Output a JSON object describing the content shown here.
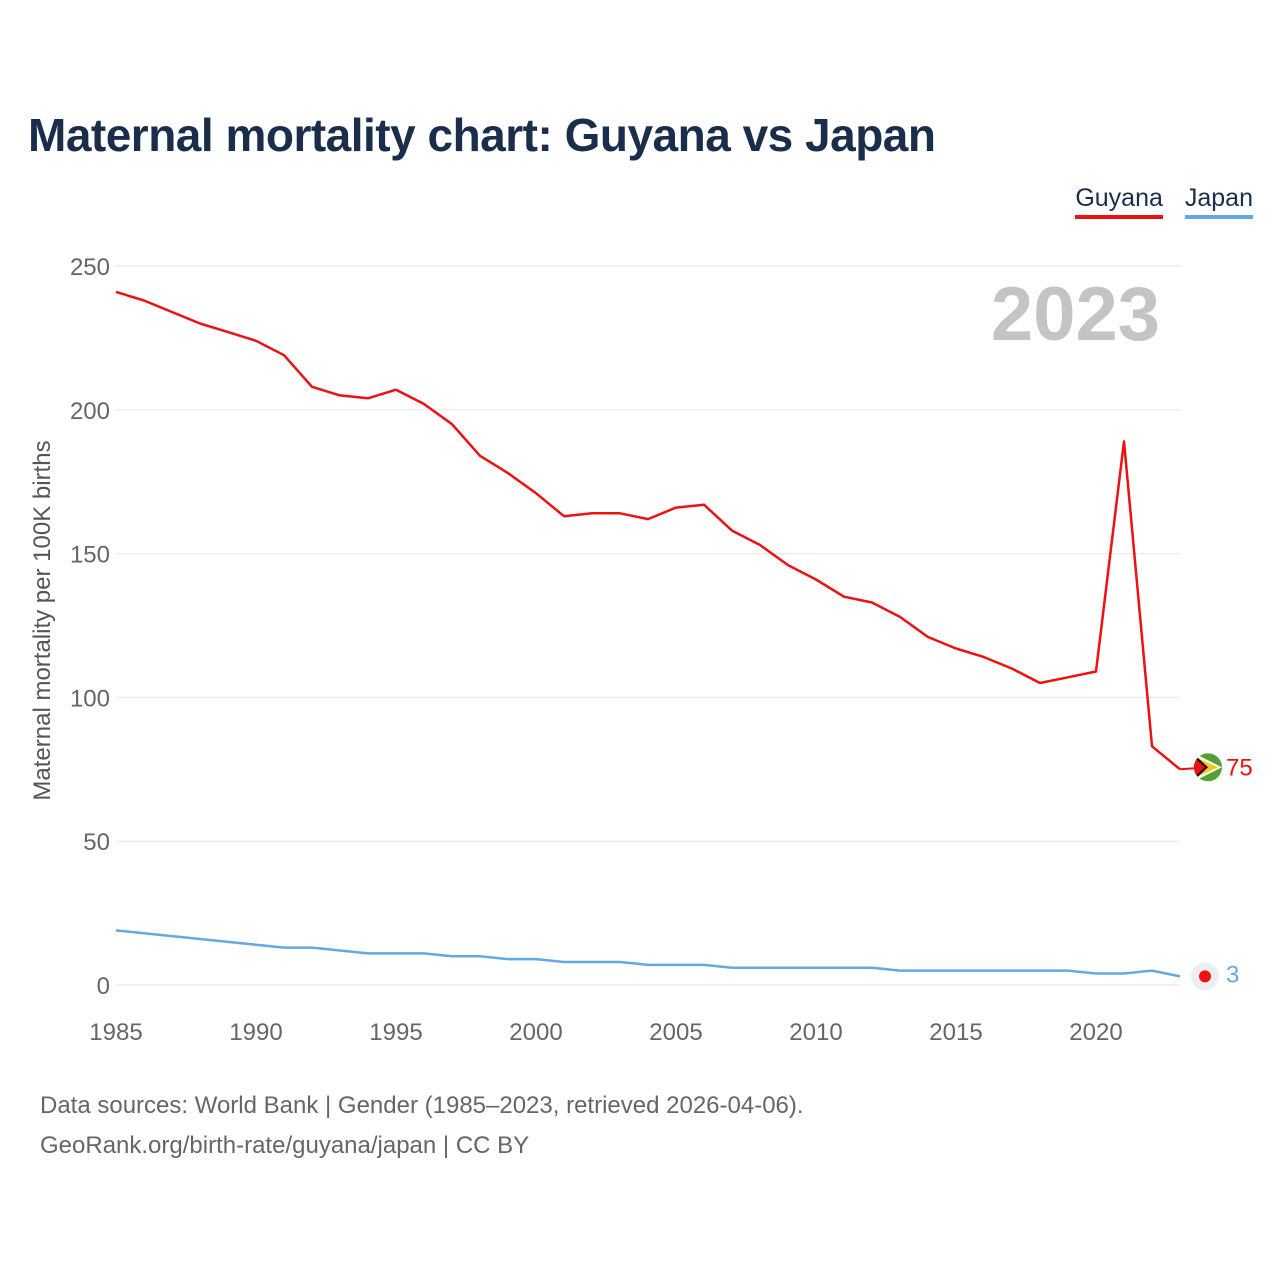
{
  "title": "Maternal mortality chart: Guyana vs Japan",
  "legend": {
    "guyana": "Guyana",
    "japan": "Japan"
  },
  "footer": {
    "line1": "Data sources: World Bank | Gender (1985–2023, retrieved 2026-04-06).",
    "line2": "GeoRank.org/birth-rate/guyana/japan | CC BY"
  },
  "colors": {
    "guyana": "#ee1111",
    "japan": "#66a8e2",
    "title": "#1a2e4c",
    "grid": "#e6e6e6",
    "year_watermark": "#c4c4c4"
  },
  "chart_data": {
    "type": "line",
    "title": "Maternal mortality chart: Guyana vs Japan",
    "ylabel": "Maternal mortality per 100K births",
    "xlabel": "",
    "ylim": [
      0,
      250
    ],
    "xlim": [
      1985,
      2023
    ],
    "y_ticks": [
      0,
      50,
      100,
      150,
      200,
      250
    ],
    "x_ticks": [
      1985,
      1990,
      1995,
      2000,
      2005,
      2010,
      2015,
      2020
    ],
    "year_label": "2023",
    "x": [
      1985,
      1986,
      1987,
      1988,
      1989,
      1990,
      1991,
      1992,
      1993,
      1994,
      1995,
      1996,
      1997,
      1998,
      1999,
      2000,
      2001,
      2002,
      2003,
      2004,
      2005,
      2006,
      2007,
      2008,
      2009,
      2010,
      2011,
      2012,
      2013,
      2014,
      2015,
      2016,
      2017,
      2018,
      2019,
      2020,
      2021,
      2022,
      2023
    ],
    "series": [
      {
        "name": "Guyana",
        "color": "#ee1111",
        "end_label": "75",
        "values": [
          241,
          238,
          234,
          230,
          227,
          224,
          219,
          208,
          205,
          204,
          207,
          202,
          195,
          184,
          178,
          171,
          163,
          164,
          164,
          162,
          166,
          167,
          158,
          153,
          146,
          141,
          135,
          133,
          128,
          121,
          117,
          114,
          110,
          105,
          107,
          109,
          189,
          83,
          75
        ]
      },
      {
        "name": "Japan",
        "color": "#66a8e2",
        "end_label": "3",
        "values": [
          19,
          18,
          17,
          16,
          15,
          14,
          13,
          13,
          12,
          11,
          11,
          11,
          10,
          10,
          9,
          9,
          8,
          8,
          8,
          7,
          7,
          7,
          6,
          6,
          6,
          6,
          6,
          6,
          5,
          5,
          5,
          5,
          5,
          5,
          5,
          4,
          4,
          5,
          3
        ]
      }
    ]
  }
}
